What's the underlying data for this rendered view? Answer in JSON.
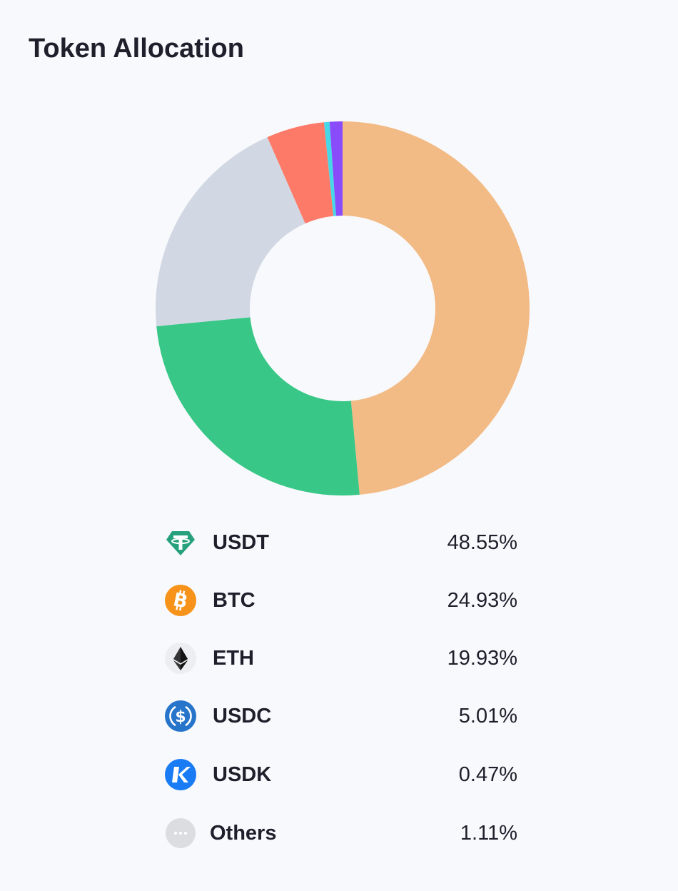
{
  "page": {
    "title": "Token Allocation"
  },
  "chart_data": {
    "type": "pie",
    "variant": "donut",
    "categories": [
      "USDT",
      "BTC",
      "ETH",
      "USDC",
      "USDK",
      "Others"
    ],
    "values": [
      48.55,
      24.93,
      19.93,
      5.01,
      0.47,
      1.11
    ],
    "value_labels": [
      "48.55%",
      "24.93%",
      "19.93%",
      "5.01%",
      "0.47%",
      "1.11%"
    ],
    "colors": [
      "#f2ba84",
      "#38c787",
      "#d1d8e3",
      "#fe7a68",
      "#46d8e6",
      "#8a4cfb"
    ],
    "title": "Token Allocation",
    "legend": "bottom",
    "icons": [
      "usdt-icon",
      "btc-icon",
      "eth-icon",
      "usdc-icon",
      "usdk-icon",
      "others-icon"
    ]
  }
}
